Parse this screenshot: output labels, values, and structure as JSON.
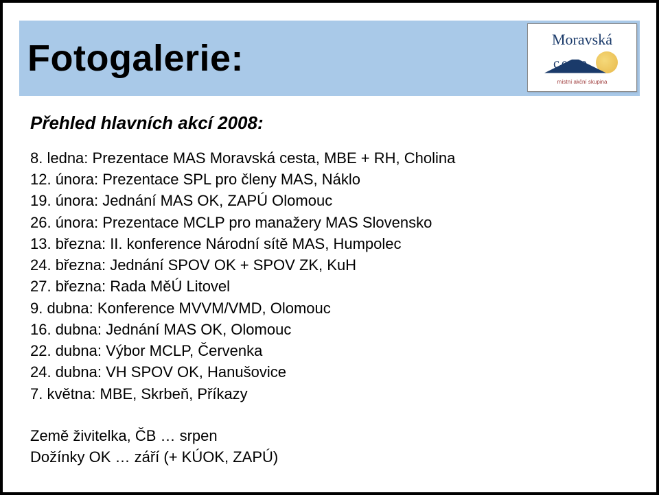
{
  "header": {
    "title": "Fotogalerie:",
    "band_color": "#a9c9e8",
    "logo": {
      "top_text": "Moravská",
      "road_text": "ce  ta",
      "tagline": "místní akční skupina",
      "sun_color": "#e8b84a",
      "road_color": "#1a3a6a"
    }
  },
  "subtitle": "Přehled hlavních akcí 2008:",
  "events": [
    "8. ledna: Prezentace MAS Moravská cesta, MBE + RH, Cholina",
    "12. února: Prezentace SPL pro členy MAS, Náklo",
    "19. února: Jednání MAS OK, ZAPÚ Olomouc",
    "26. února: Prezentace MCLP pro manažery MAS Slovensko",
    "13. března: II. konference Národní sítě MAS, Humpolec",
    "24. března: Jednání SPOV OK + SPOV ZK, KuH",
    "27. března: Rada MěÚ Litovel",
    "9. dubna: Konference MVVM/VMD, Olomouc",
    "16. dubna: Jednání MAS OK, Olomouc",
    "22. dubna: Výbor MCLP, Červenka",
    "24. dubna: VH SPOV OK, Hanušovice",
    "7. května: MBE, Skrbeň, Příkazy"
  ],
  "footer_lines": [
    "Země živitelka, ČB … srpen",
    "Dožínky OK … září (+ KÚOK, ZAPÚ)"
  ],
  "styling": {
    "slide_border_color": "#000000",
    "slide_border_width": 4,
    "background": "#ffffff",
    "title_fontsize": 54,
    "subtitle_fontsize": 26,
    "body_fontsize": 22,
    "font_family": "Verdana"
  }
}
